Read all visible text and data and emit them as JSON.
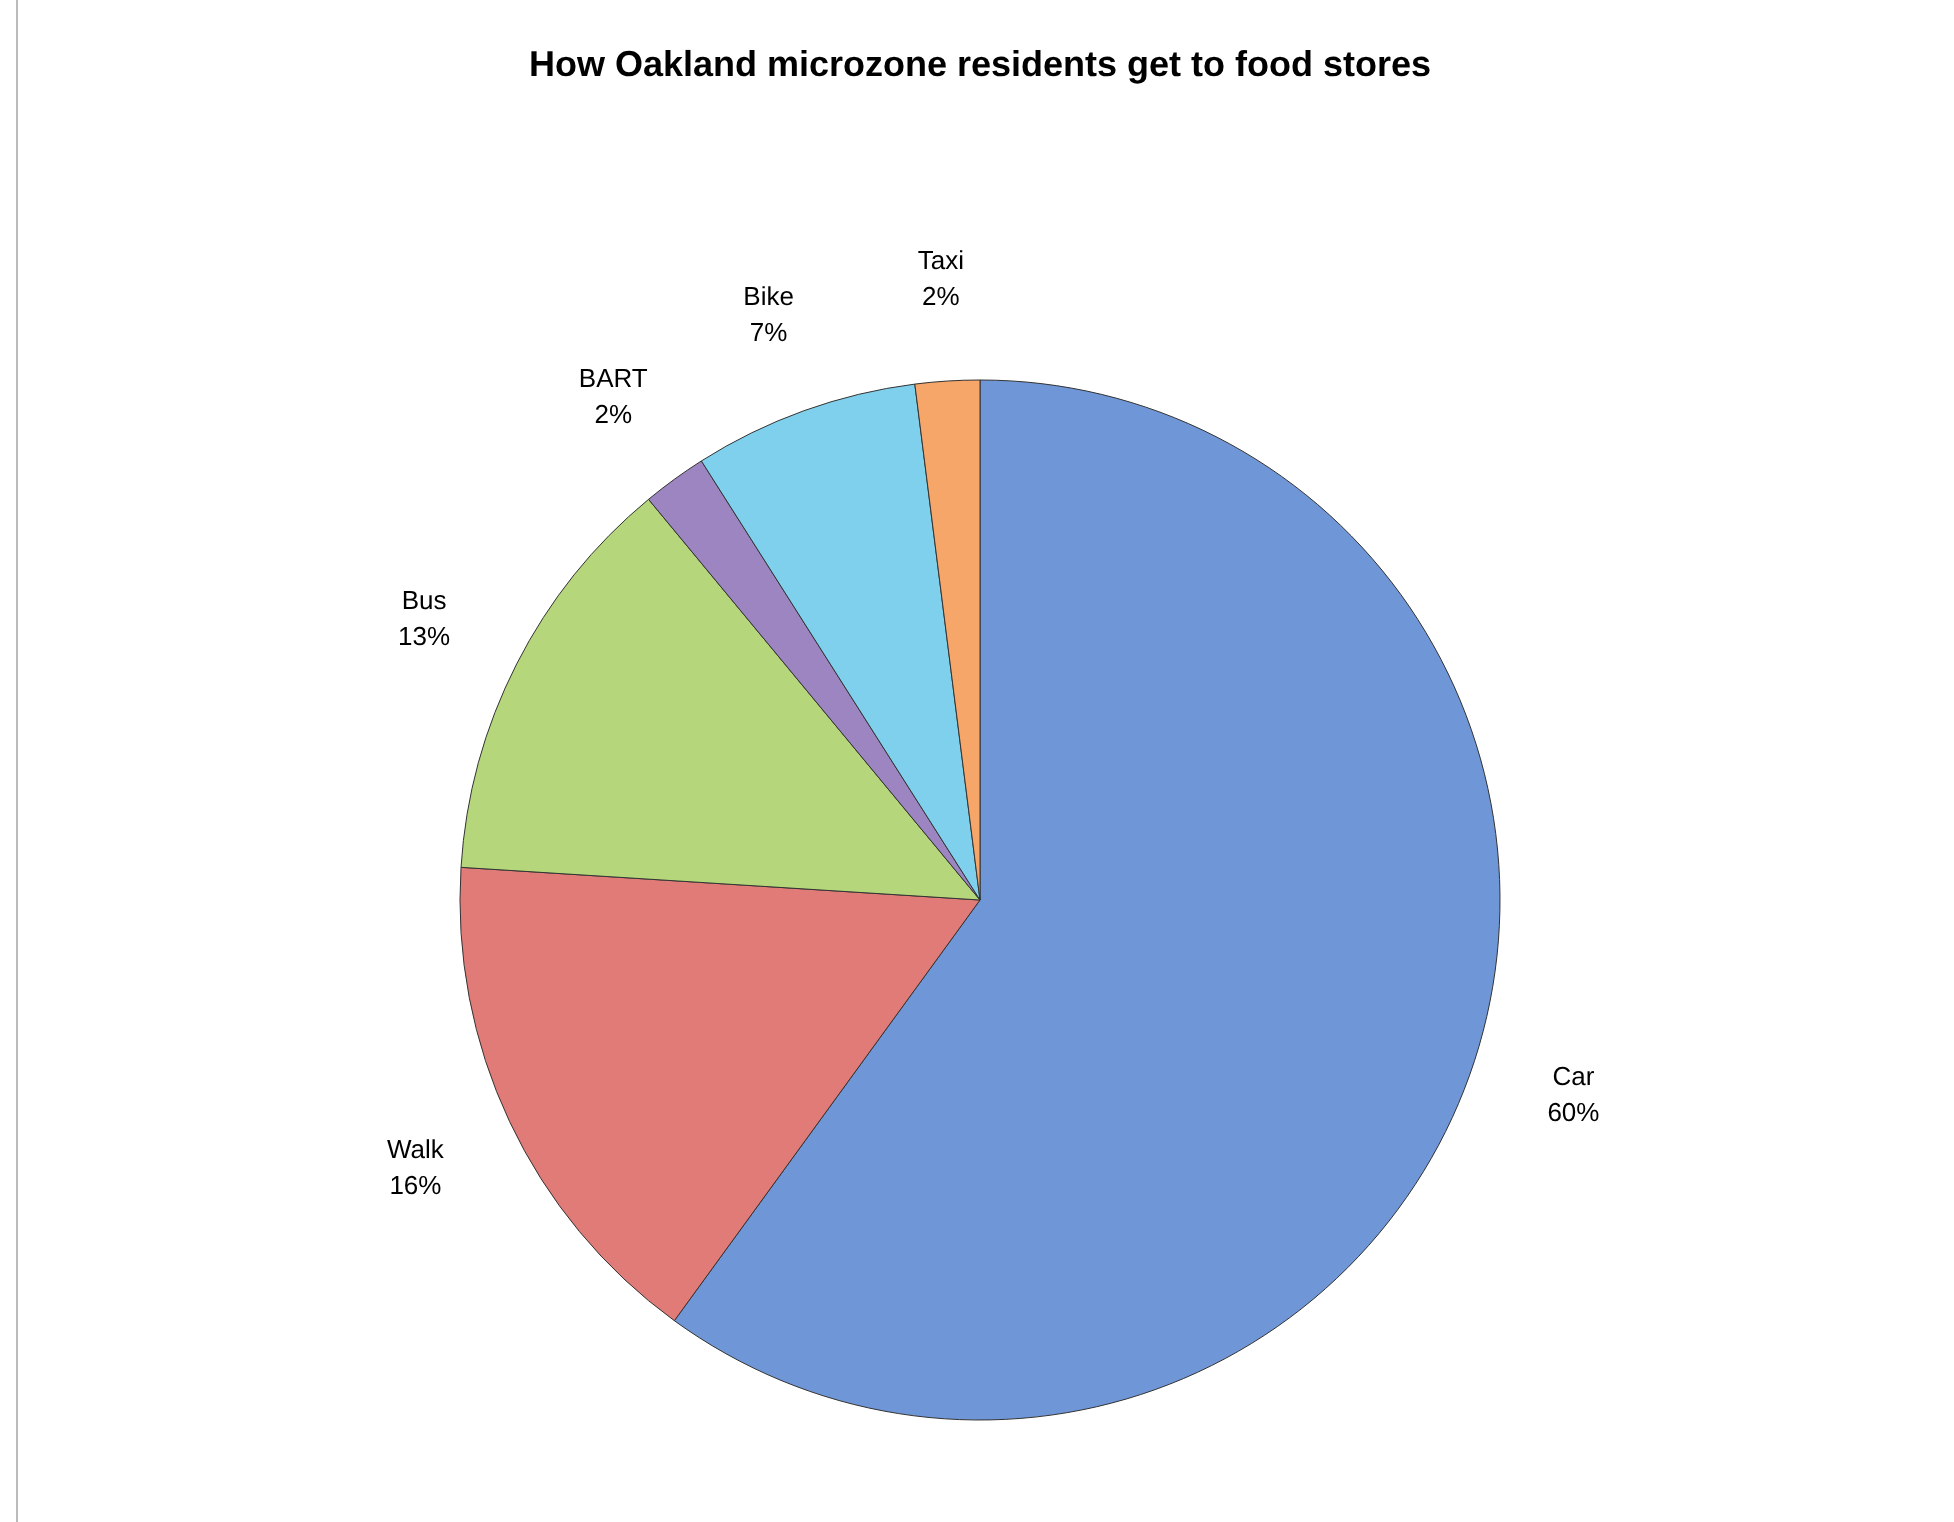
{
  "chart_data": {
    "type": "pie",
    "title": "How Oakland microzone residents get to food stores",
    "categories": [
      "Car",
      "Walk",
      "Bus",
      "BART",
      "Bike",
      "Taxi"
    ],
    "values": [
      60,
      16,
      13,
      2,
      7,
      2
    ],
    "colors": [
      "#6f97d8",
      "#e07b78",
      "#b5d67a",
      "#9c85c0",
      "#7fd0ec",
      "#f7a66a"
    ],
    "value_labels": [
      "60%",
      "16%",
      "13%",
      "2%",
      "7%",
      "2%"
    ],
    "legend": false
  }
}
